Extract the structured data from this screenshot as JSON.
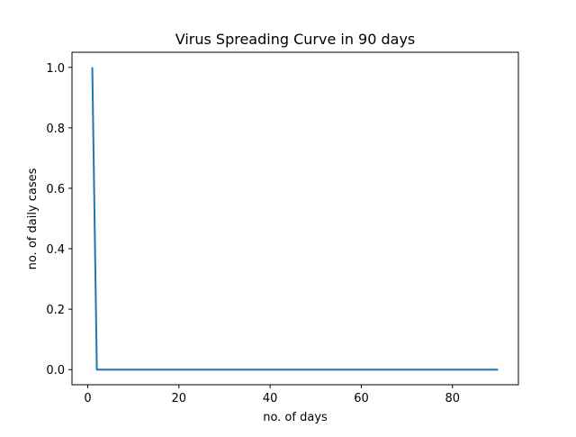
{
  "chart_data": {
    "type": "line",
    "title": "Virus Spreading Curve in 90 days",
    "xlabel": "no. of days",
    "ylabel": "no. of daily cases",
    "xlim": [
      -3.45,
      94.45
    ],
    "ylim": [
      -0.05,
      1.05
    ],
    "xticks": [
      0,
      20,
      40,
      60,
      80
    ],
    "yticks": [
      0.0,
      0.2,
      0.4,
      0.6,
      0.8,
      1.0
    ],
    "xtick_labels": [
      "0",
      "20",
      "40",
      "60",
      "80"
    ],
    "ytick_labels": [
      "0.0",
      "0.2",
      "0.4",
      "0.6",
      "0.8",
      "1.0"
    ],
    "grid": false,
    "series": [
      {
        "color": "#1f77b4",
        "x": [
          1,
          2,
          90
        ],
        "y": [
          1.0,
          0.0,
          0.0
        ]
      }
    ]
  }
}
